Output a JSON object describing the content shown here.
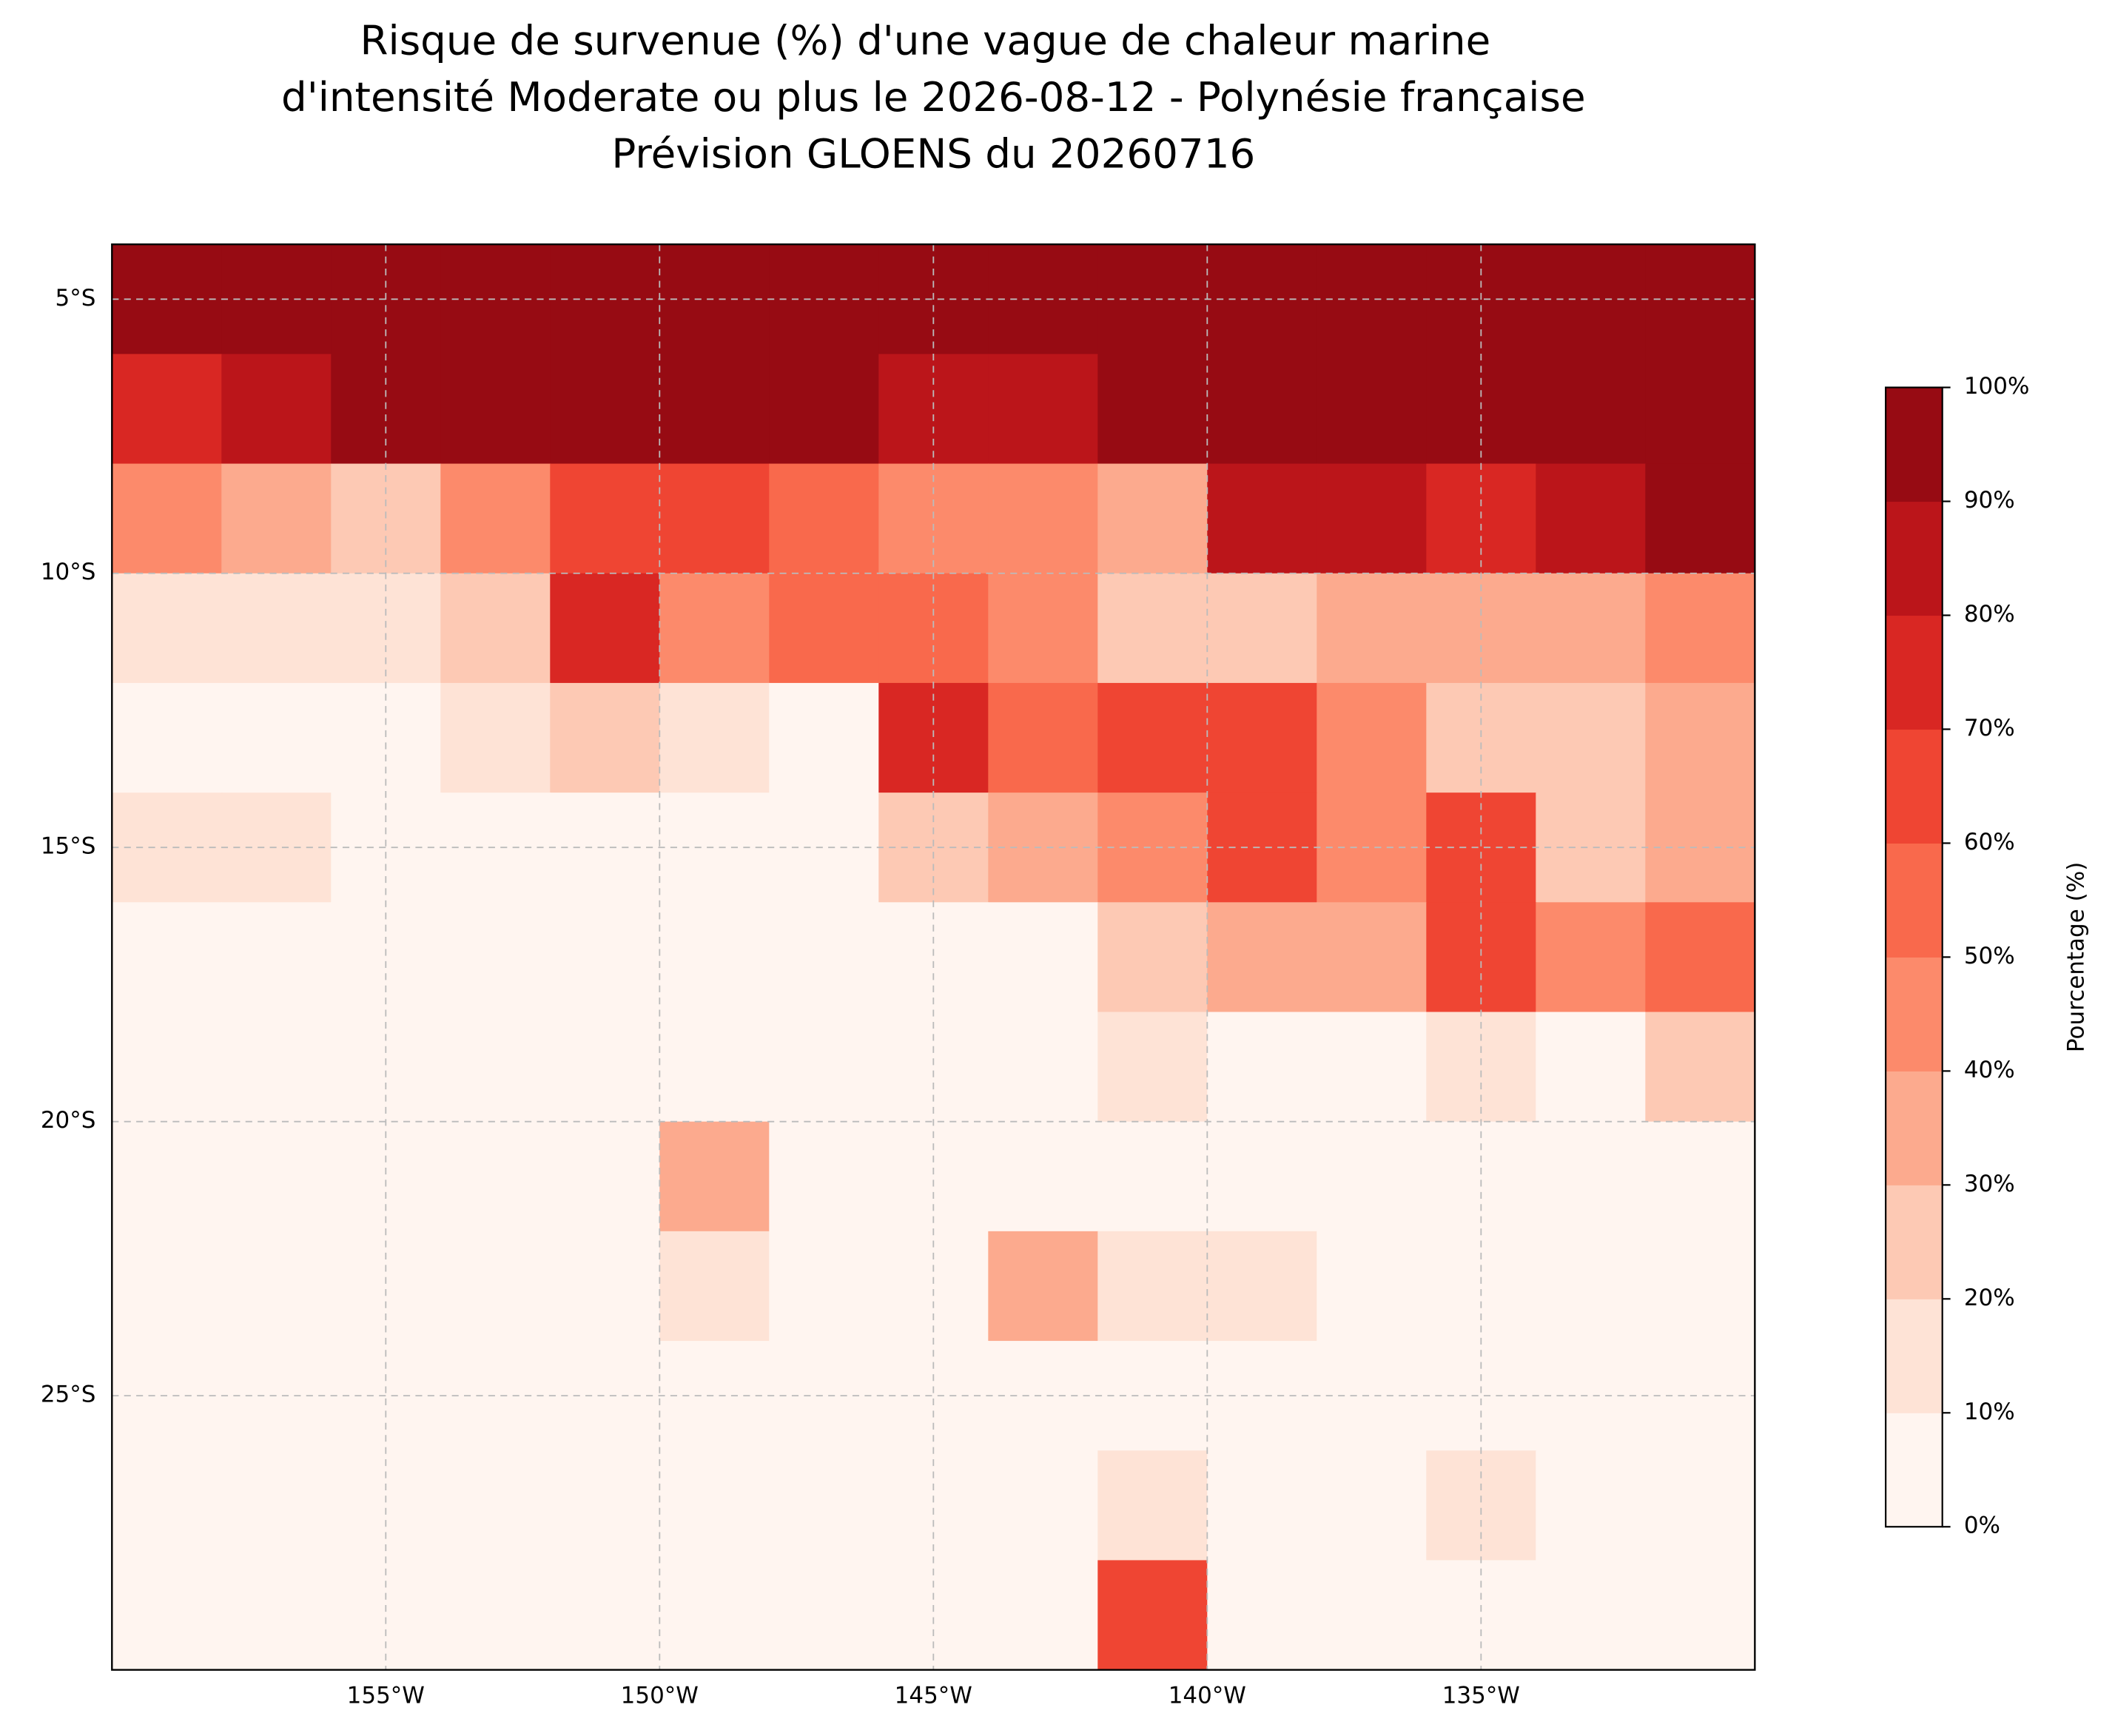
{
  "chart_data": {
    "type": "heatmap",
    "title": [
      "Risque de survenue (%) d'une vague de chaleur marine",
      "d'intensité Moderate ou plus le 2026-08-12 - Polynésie française",
      "Prévision GLOENS du 20260716"
    ],
    "colorbar_label": "Pourcentage (%)",
    "xlim": [
      -160,
      -130
    ],
    "ylim": [
      -30,
      -4
    ],
    "xticks": [
      {
        "value": -155,
        "label": "155°W"
      },
      {
        "value": -150,
        "label": "150°W"
      },
      {
        "value": -145,
        "label": "145°W"
      },
      {
        "value": -140,
        "label": "140°W"
      },
      {
        "value": -135,
        "label": "135°W"
      }
    ],
    "yticks": [
      {
        "value": -5,
        "label": "5°S"
      },
      {
        "value": -10,
        "label": "10°S"
      },
      {
        "value": -15,
        "label": "15°S"
      },
      {
        "value": -20,
        "label": "20°S"
      },
      {
        "value": -25,
        "label": "25°S"
      }
    ],
    "grid": true,
    "levels": [
      {
        "value": 0,
        "label": "0%"
      },
      {
        "value": 10,
        "label": "10%"
      },
      {
        "value": 20,
        "label": "20%"
      },
      {
        "value": 30,
        "label": "30%"
      },
      {
        "value": 40,
        "label": "40%"
      },
      {
        "value": 50,
        "label": "50%"
      },
      {
        "value": 60,
        "label": "60%"
      },
      {
        "value": 70,
        "label": "70%"
      },
      {
        "value": 80,
        "label": "80%"
      },
      {
        "value": 90,
        "label": "90%"
      },
      {
        "value": 100,
        "label": "100%"
      }
    ],
    "colors": [
      "#fff5f0",
      "#fee3d6",
      "#fdc9b4",
      "#fcaa8e",
      "#fc8a6b",
      "#f9694c",
      "#ef4533",
      "#d92723",
      "#bb151a",
      "#970b13"
    ],
    "x": [
      -159,
      -157,
      -155,
      -153,
      -151,
      -149,
      -147,
      -145,
      -143,
      -141,
      -139,
      -137,
      -135,
      -133,
      -131
    ],
    "y": [
      -5,
      -7,
      -9,
      -11,
      -13,
      -15,
      -17,
      -19,
      -21,
      -23,
      -25,
      -27,
      -29
    ],
    "values": [
      [
        95,
        95,
        95,
        95,
        95,
        95,
        95,
        95,
        95,
        95,
        95,
        95,
        95,
        95,
        95
      ],
      [
        70,
        85,
        90,
        95,
        95,
        95,
        90,
        85,
        80,
        90,
        90,
        90,
        95,
        95,
        95
      ],
      [
        40,
        30,
        20,
        45,
        65,
        60,
        50,
        40,
        45,
        30,
        85,
        80,
        75,
        85,
        95
      ],
      [
        10,
        15,
        10,
        25,
        70,
        45,
        55,
        55,
        40,
        25,
        20,
        30,
        35,
        30,
        45
      ],
      [
        5,
        5,
        5,
        10,
        25,
        10,
        5,
        70,
        55,
        60,
        65,
        45,
        25,
        25,
        30
      ],
      [
        10,
        15,
        5,
        5,
        0,
        0,
        0,
        25,
        35,
        45,
        65,
        40,
        60,
        25,
        35
      ],
      [
        0,
        0,
        0,
        0,
        0,
        0,
        0,
        0,
        0,
        25,
        30,
        30,
        65,
        40,
        50
      ],
      [
        0,
        0,
        0,
        0,
        0,
        0,
        0,
        0,
        0,
        15,
        0,
        0,
        10,
        0,
        20
      ],
      [
        0,
        0,
        0,
        0,
        0,
        35,
        0,
        0,
        0,
        0,
        0,
        0,
        0,
        0,
        0
      ],
      [
        0,
        0,
        0,
        0,
        0,
        10,
        0,
        0,
        30,
        15,
        10,
        0,
        0,
        0,
        0
      ],
      [
        0,
        0,
        0,
        0,
        0,
        0,
        0,
        0,
        0,
        0,
        0,
        0,
        0,
        0,
        0
      ],
      [
        0,
        0,
        0,
        0,
        0,
        0,
        0,
        0,
        0,
        10,
        0,
        0,
        15,
        0,
        0
      ],
      [
        0,
        0,
        0,
        0,
        0,
        5,
        0,
        0,
        0,
        60,
        0,
        0,
        0,
        0,
        0
      ]
    ]
  }
}
